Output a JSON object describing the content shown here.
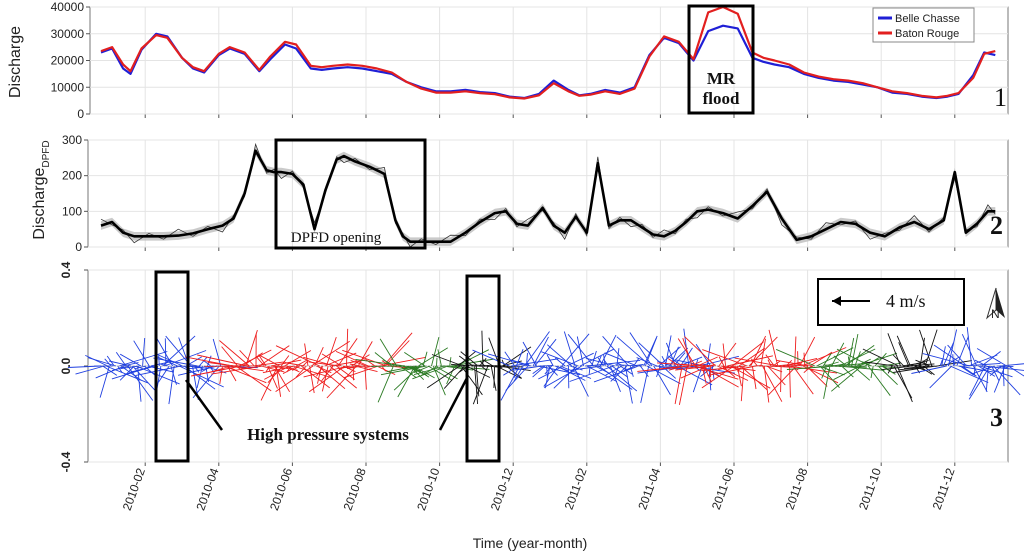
{
  "chart_data": [
    {
      "type": "line",
      "panel_number": "1",
      "ylabel": "Discharge",
      "ylim": [
        0,
        40000
      ],
      "yticks": [
        "0",
        "10000",
        "20000",
        "30000",
        "40000"
      ],
      "x_range_month_index": [
        0.0,
        25.0
      ],
      "series": [
        {
          "name": "Belle Chasse",
          "color": "#1f1fd6",
          "x": [
            0.3,
            0.6,
            0.9,
            1.1,
            1.4,
            1.8,
            2.1,
            2.5,
            2.8,
            3.1,
            3.5,
            3.8,
            4.2,
            4.6,
            4.9,
            5.3,
            5.6,
            6.0,
            6.3,
            6.6,
            7.0,
            7.4,
            7.8,
            8.2,
            8.6,
            9.0,
            9.4,
            9.8,
            10.2,
            10.6,
            11.0,
            11.4,
            11.8,
            12.2,
            12.6,
            13.0,
            13.3,
            13.6,
            14.0,
            14.4,
            14.8,
            15.2,
            15.6,
            16.0,
            16.4,
            16.8,
            17.2,
            17.6,
            18.0,
            18.3,
            18.6,
            19.0,
            19.4,
            19.8,
            20.2,
            20.6,
            21.0,
            21.4,
            21.8,
            22.2,
            22.6,
            23.0,
            23.3,
            23.6,
            24.0,
            24.3,
            24.6
          ],
          "y": [
            23000,
            24500,
            17000,
            15000,
            24000,
            30000,
            29000,
            21000,
            17000,
            15500,
            22000,
            24500,
            22500,
            16000,
            20500,
            26000,
            24500,
            17000,
            16500,
            17000,
            17500,
            17000,
            16000,
            15000,
            12000,
            10000,
            8500,
            8500,
            9000,
            8200,
            7800,
            6500,
            6000,
            7500,
            12500,
            9000,
            7000,
            7500,
            9000,
            8000,
            10000,
            22000,
            28500,
            26500,
            20000,
            31000,
            33000,
            32000,
            21000,
            19500,
            18500,
            17500,
            15000,
            13500,
            12500,
            12000,
            11000,
            10000,
            8000,
            7500,
            6500,
            6000,
            6500,
            7500,
            14500,
            23000,
            22000
          ]
        },
        {
          "name": "Baton Rouge",
          "color": "#e21f1f",
          "x": [
            0.3,
            0.6,
            0.9,
            1.1,
            1.4,
            1.8,
            2.1,
            2.5,
            2.8,
            3.1,
            3.5,
            3.8,
            4.2,
            4.6,
            4.9,
            5.3,
            5.6,
            6.0,
            6.3,
            6.6,
            7.0,
            7.4,
            7.8,
            8.2,
            8.6,
            9.0,
            9.4,
            9.8,
            10.2,
            10.6,
            11.0,
            11.4,
            11.8,
            12.2,
            12.6,
            13.0,
            13.3,
            13.6,
            14.0,
            14.4,
            14.8,
            15.2,
            15.6,
            16.0,
            16.4,
            16.8,
            17.2,
            17.6,
            18.0,
            18.3,
            18.6,
            19.0,
            19.4,
            19.8,
            20.2,
            20.6,
            21.0,
            21.4,
            21.8,
            22.2,
            22.6,
            23.0,
            23.3,
            23.6,
            24.0,
            24.3,
            24.6
          ],
          "y": [
            23500,
            25000,
            18500,
            16000,
            24500,
            29500,
            28500,
            21000,
            17500,
            16000,
            22500,
            25000,
            23000,
            16500,
            21500,
            27000,
            26000,
            18000,
            17500,
            18000,
            18500,
            18000,
            17000,
            15500,
            12000,
            9500,
            8000,
            8000,
            8500,
            7800,
            7400,
            6200,
            5800,
            7000,
            11500,
            8500,
            6800,
            7200,
            8500,
            7500,
            9500,
            21500,
            29000,
            27000,
            20500,
            38000,
            40000,
            37500,
            23000,
            21000,
            20000,
            18500,
            15500,
            14000,
            13000,
            12500,
            11500,
            10000,
            8500,
            7800,
            6800,
            6200,
            6800,
            7800,
            13500,
            22500,
            23500
          ]
        }
      ],
      "annotations": [
        {
          "text": "MR",
          "text2": "flood"
        }
      ],
      "legend": "top-right"
    },
    {
      "type": "line",
      "panel_number": "2",
      "ylabel": "Discharge",
      "ylabel_sub": "DPFD",
      "ylim": [
        0,
        300
      ],
      "yticks": [
        "0",
        "100",
        "200",
        "300"
      ],
      "series": [
        {
          "name": "DPFD discharge (smoothed)",
          "color": "#000000",
          "x": [
            0.3,
            0.6,
            0.9,
            1.2,
            1.6,
            2.0,
            2.4,
            2.8,
            3.2,
            3.6,
            3.9,
            4.2,
            4.5,
            4.8,
            5.0,
            5.2,
            5.5,
            5.8,
            6.1,
            6.4,
            6.7,
            6.9,
            7.2,
            7.6,
            8.0,
            8.3,
            8.5,
            8.7,
            9.0,
            9.4,
            9.8,
            10.2,
            10.6,
            11.0,
            11.3,
            11.6,
            11.9,
            12.3,
            12.6,
            12.9,
            13.2,
            13.5,
            13.8,
            14.1,
            14.4,
            14.7,
            15.0,
            15.3,
            15.6,
            15.9,
            16.2,
            16.5,
            16.8,
            17.2,
            17.6,
            18.0,
            18.4,
            18.8,
            19.2,
            19.6,
            20.0,
            20.4,
            20.8,
            21.2,
            21.6,
            22.0,
            22.4,
            22.8,
            23.2,
            23.5,
            23.8,
            24.1,
            24.4,
            24.6
          ],
          "y": [
            60,
            70,
            40,
            30,
            30,
            30,
            32,
            38,
            50,
            60,
            80,
            150,
            270,
            215,
            210,
            210,
            205,
            175,
            50,
            160,
            245,
            255,
            240,
            225,
            205,
            75,
            30,
            15,
            15,
            15,
            15,
            40,
            70,
            95,
            100,
            65,
            60,
            110,
            60,
            40,
            85,
            40,
            235,
            60,
            75,
            75,
            55,
            35,
            30,
            45,
            70,
            100,
            105,
            95,
            80,
            115,
            155,
            80,
            20,
            30,
            50,
            70,
            65,
            40,
            30,
            55,
            70,
            50,
            75,
            210,
            40,
            65,
            100,
            100
          ]
        }
      ],
      "annotations": [
        {
          "text": "DPFD opening"
        }
      ]
    },
    {
      "type": "scatter",
      "panel_number": "3",
      "ylim": [
        -0.4,
        0.4
      ],
      "yticks": [
        "0.4",
        "0.0",
        "-0.4"
      ],
      "xlabel": "Time (year-month)",
      "xticks": [
        "2010-02",
        "2010-04",
        "2010-06",
        "2010-08",
        "2010-10",
        "2010-12",
        "2011-02",
        "2011-04",
        "2011-06",
        "2011-08",
        "2011-10",
        "2011-12"
      ],
      "series": [
        {
          "name": "wind vectors (blue)",
          "color": "#1f3fe0"
        },
        {
          "name": "wind vectors (red)",
          "color": "#ee1c1c"
        },
        {
          "name": "wind vectors (green)",
          "color": "#2a7a22"
        },
        {
          "name": "wind vectors (black)",
          "color": "#111111"
        }
      ],
      "annotations": [
        {
          "text": "High pressure systems"
        }
      ],
      "scale_label": "4 m/s",
      "north_label": "N"
    }
  ]
}
